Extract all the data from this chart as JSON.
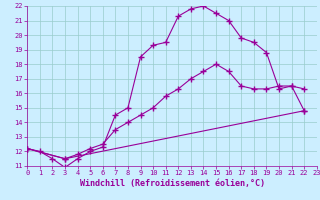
{
  "xlabel": "Windchill (Refroidissement éolien,°C)",
  "bg_color": "#cceeff",
  "grid_color": "#99cccc",
  "line_color": "#990099",
  "xlim": [
    0,
    23
  ],
  "ylim": [
    11,
    22
  ],
  "xticks": [
    0,
    1,
    2,
    3,
    4,
    5,
    6,
    7,
    8,
    9,
    10,
    11,
    12,
    13,
    14,
    15,
    16,
    17,
    18,
    19,
    20,
    21,
    22,
    23
  ],
  "yticks": [
    11,
    12,
    13,
    14,
    15,
    16,
    17,
    18,
    19,
    20,
    21,
    22
  ],
  "line1_x": [
    0,
    1,
    2,
    3,
    4,
    5,
    6,
    7,
    8,
    9,
    10,
    11,
    12,
    13,
    14,
    15,
    16,
    17,
    18,
    19,
    20,
    21,
    22
  ],
  "line1_y": [
    12.2,
    12.0,
    11.5,
    10.9,
    11.5,
    12.0,
    12.3,
    14.5,
    15.0,
    18.5,
    19.3,
    19.5,
    21.3,
    21.8,
    22.0,
    21.5,
    21.0,
    19.8,
    19.5,
    18.8,
    16.3,
    16.5,
    16.3
  ],
  "line2_x": [
    0,
    3,
    4,
    5,
    6,
    7,
    8,
    9,
    10,
    11,
    12,
    13,
    14,
    15,
    16,
    17,
    18,
    19,
    20,
    21,
    22
  ],
  "line2_y": [
    12.2,
    11.5,
    11.8,
    12.2,
    12.5,
    13.5,
    14.0,
    14.5,
    15.0,
    15.8,
    16.3,
    17.0,
    17.5,
    18.0,
    17.5,
    16.5,
    16.3,
    16.3,
    16.5,
    16.5,
    14.8
  ],
  "line3_x": [
    0,
    3,
    22
  ],
  "line3_y": [
    12.2,
    11.5,
    14.8
  ],
  "marker": "+",
  "markersize": 4,
  "linewidth": 0.8,
  "tick_fontsize": 5,
  "xlabel_fontsize": 6
}
